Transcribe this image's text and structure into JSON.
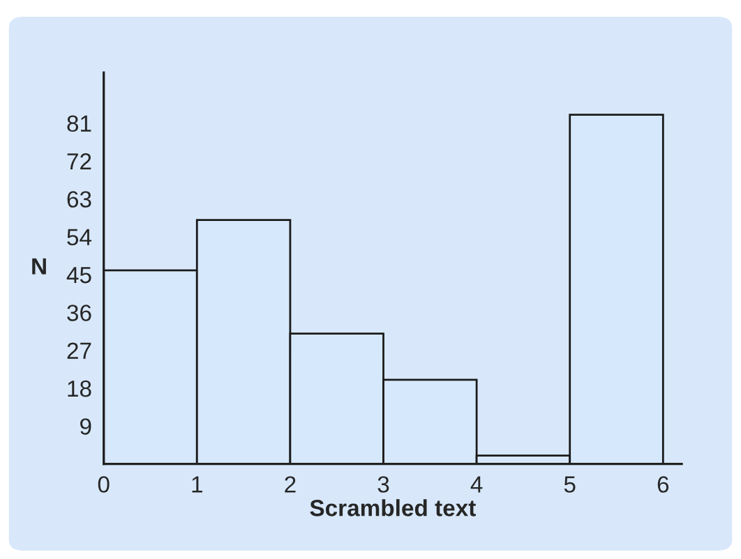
{
  "chart_data": {
    "type": "histogram",
    "xlabel": "Scrambled text",
    "ylabel": "N",
    "bins": [
      0,
      1,
      2,
      3,
      4,
      5,
      6
    ],
    "values": [
      46,
      58,
      31,
      20,
      2,
      83
    ],
    "color": "#d6e8fb",
    "xlim": [
      0,
      6.2
    ],
    "ylim": [
      0,
      93
    ],
    "xticks": [
      0,
      1,
      2,
      3,
      4,
      5,
      6
    ],
    "yticks": [
      9,
      18,
      27,
      36,
      45,
      54,
      63,
      72,
      81
    ],
    "grid": false
  }
}
